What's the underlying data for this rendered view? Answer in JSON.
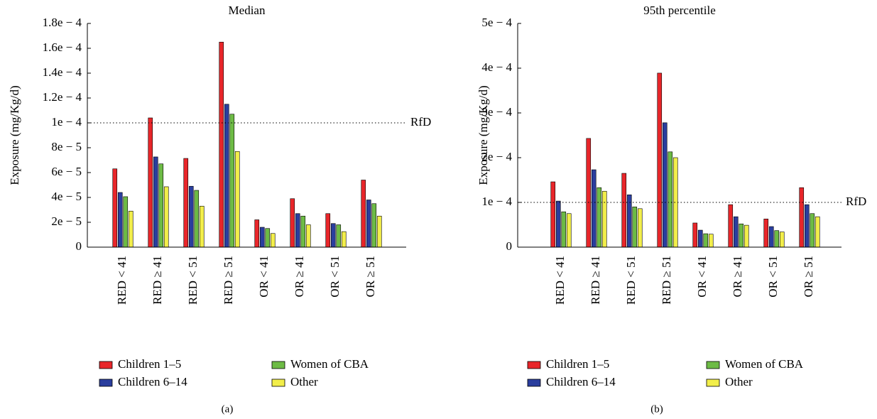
{
  "chart_data": [
    {
      "type": "bar",
      "title": "Median",
      "ylabel": "Exposure (mg/Kg/d)",
      "caption": "(a)",
      "categories": [
        "RED < 41",
        "RED ≥ 41",
        "RED < 51",
        "RED ≥ 51",
        "OR < 41",
        "OR ≥ 41",
        "OR < 51",
        "OR ≥ 51"
      ],
      "series": [
        {
          "name": "Children 1–5",
          "color": "#e8262a",
          "values": [
            6.3e-05,
            0.000104,
            7.14e-05,
            0.000165,
            2.2e-05,
            3.9e-05,
            2.7e-05,
            5.4e-05
          ]
        },
        {
          "name": "Children 6–14",
          "color": "#2a3e9e",
          "values": [
            4.4e-05,
            7.26e-05,
            4.9e-05,
            0.000115,
            1.6e-05,
            2.7e-05,
            1.9e-05,
            3.8e-05
          ]
        },
        {
          "name": "Women of CBA",
          "color": "#6dbb45",
          "values": [
            4.06e-05,
            6.7e-05,
            4.57e-05,
            0.000107,
            1.5e-05,
            2.5e-05,
            1.8e-05,
            3.5e-05
          ]
        },
        {
          "name": "Other",
          "color": "#f2ee4a",
          "values": [
            2.9e-05,
            4.86e-05,
            3.3e-05,
            7.7e-05,
            1.1e-05,
            1.8e-05,
            1.25e-05,
            2.5e-05
          ]
        }
      ],
      "ylim": [
        0,
        0.00018
      ],
      "yticks": [
        0,
        {
          "value": 2e-05,
          "label": "2e − 5"
        },
        {
          "value": 4e-05,
          "label": "4e − 5"
        },
        {
          "value": 6e-05,
          "label": "6e − 5"
        },
        {
          "value": 8e-05,
          "label": "8e − 5"
        },
        {
          "value": 0.0001,
          "label": "1e − 4"
        },
        {
          "value": 0.00012,
          "label": "1.2e − 4"
        },
        {
          "value": 0.00014,
          "label": "1.4e − 4"
        },
        {
          "value": 0.00016,
          "label": "1.6e − 4"
        },
        {
          "value": 0.00018,
          "label": "1.8e − 4"
        }
      ],
      "reference_line": {
        "value": 0.0001,
        "label": "RfD"
      }
    },
    {
      "type": "bar",
      "title": "95th percentile",
      "ylabel": "Exposure (mg/Kg/d)",
      "caption": "(b)",
      "categories": [
        "RED < 41",
        "RED ≥ 41",
        "RED < 51",
        "RED ≥ 51",
        "OR < 41",
        "OR ≥ 41",
        "OR < 51",
        "OR ≥ 51"
      ],
      "series": [
        {
          "name": "Children 1–5",
          "color": "#e8262a",
          "values": [
            0.000146,
            0.000243,
            0.000165,
            0.000389,
            5.4e-05,
            9.5e-05,
            6.3e-05,
            0.000133
          ]
        },
        {
          "name": "Children 6–14",
          "color": "#2a3e9e",
          "values": [
            0.000103,
            0.000173,
            0.000117,
            0.000278,
            3.8e-05,
            6.8e-05,
            4.6e-05,
            9.5e-05
          ]
        },
        {
          "name": "Women of CBA",
          "color": "#6dbb45",
          "values": [
            7.9e-05,
            0.000133,
            9e-05,
            0.000213,
            3e-05,
            5.2e-05,
            3.7e-05,
            7.5e-05
          ]
        },
        {
          "name": "Other",
          "color": "#f2ee4a",
          "values": [
            7.5e-05,
            0.000125,
            8.6e-05,
            0.0002,
            2.9e-05,
            4.9e-05,
            3.4e-05,
            6.8e-05
          ]
        }
      ],
      "ylim": [
        0,
        0.0005
      ],
      "yticks": [
        0,
        {
          "value": 0.0001,
          "label": "1e − 4"
        },
        {
          "value": 0.0002,
          "label": "2e − 4"
        },
        {
          "value": 0.0003,
          "label": "3e − 4"
        },
        {
          "value": 0.0004,
          "label": "4e − 4"
        },
        {
          "value": 0.0005,
          "label": "5e − 4"
        }
      ],
      "reference_line": {
        "value": 0.0001,
        "label": "RfD"
      }
    }
  ]
}
